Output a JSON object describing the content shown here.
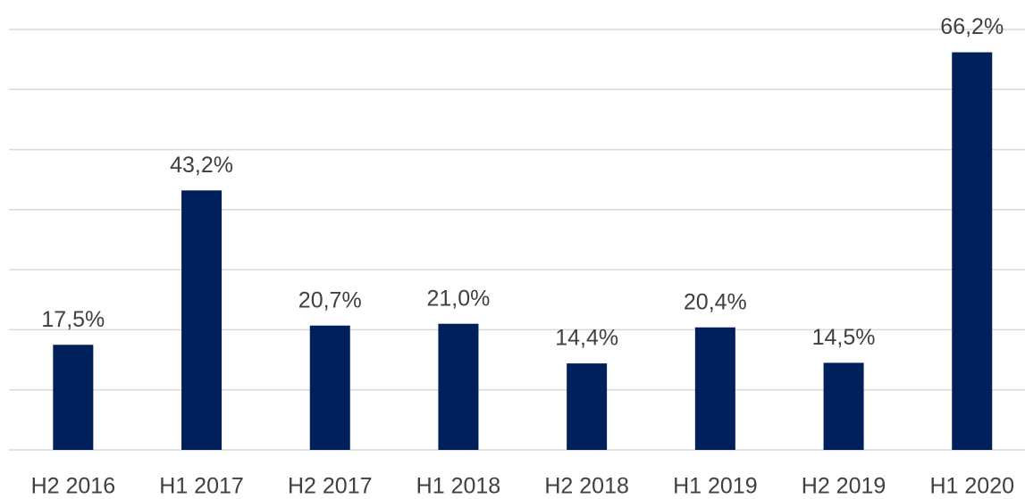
{
  "chart_data": {
    "type": "bar",
    "categories": [
      "H2 2016",
      "H1 2017",
      "H2 2017",
      "H1 2018",
      "H2 2018",
      "H1 2019",
      "H2 2019",
      "H1 2020"
    ],
    "values": [
      17.5,
      43.2,
      20.7,
      21.0,
      14.4,
      20.4,
      14.5,
      66.2
    ],
    "value_labels": [
      "17,5%",
      "43,2%",
      "20,7%",
      "21,0%",
      "14,4%",
      "20,4%",
      "14,5%",
      "66,2%"
    ],
    "color": "#00205b",
    "ylim": [
      0,
      70
    ],
    "yticks": [
      0,
      10,
      20,
      30,
      40,
      50,
      60,
      70
    ],
    "grid": true
  }
}
